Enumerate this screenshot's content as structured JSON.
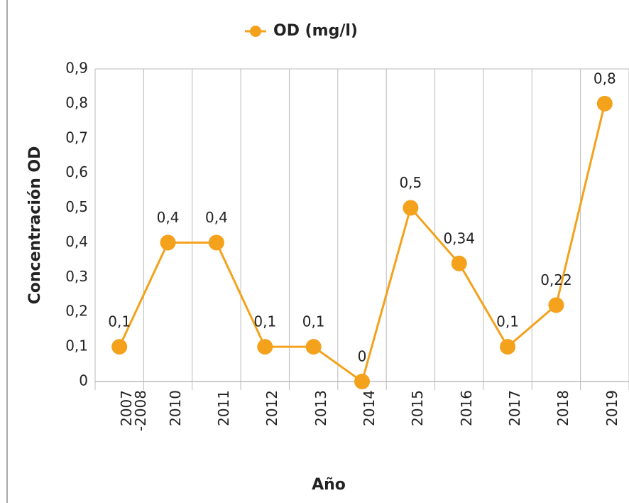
{
  "chart_data": {
    "type": "line",
    "legend": "top",
    "y_label": "Concentración OD",
    "x_label": "Año",
    "categories": [
      "2007\n-2008",
      "2010",
      "2011",
      "2012",
      "2013",
      "2014",
      "2015",
      "2016",
      "2017",
      "2018",
      "2019"
    ],
    "series": [
      {
        "name": "OD (mg/l)",
        "color": "#f4a11c",
        "values": [
          0.1,
          0.4,
          0.4,
          0.1,
          0.1,
          0,
          0.5,
          0.34,
          0.1,
          0.22,
          0.8
        ],
        "value_labels": [
          "0,1",
          "0,4",
          "0,4",
          "0,1",
          "0,1",
          "0",
          "0,5",
          "0,34",
          "0,1",
          "0,22",
          "0,8"
        ]
      }
    ],
    "ylim": [
      0,
      0.9
    ],
    "yticks": [
      0,
      {
        "value": 0.1,
        "label": "0,1"
      },
      {
        "value": 0.2,
        "label": "0,2"
      },
      {
        "value": 0.3,
        "label": "0,3"
      },
      {
        "value": 0.4,
        "label": "0,4"
      },
      {
        "value": 0.5,
        "label": "0,5"
      },
      {
        "value": 0.6,
        "label": "0,6"
      },
      {
        "value": 0.7,
        "label": "0,7"
      },
      {
        "value": 0.8,
        "label": "0,8"
      },
      {
        "value": 0.9,
        "label": "0,9"
      }
    ],
    "grid": true
  }
}
